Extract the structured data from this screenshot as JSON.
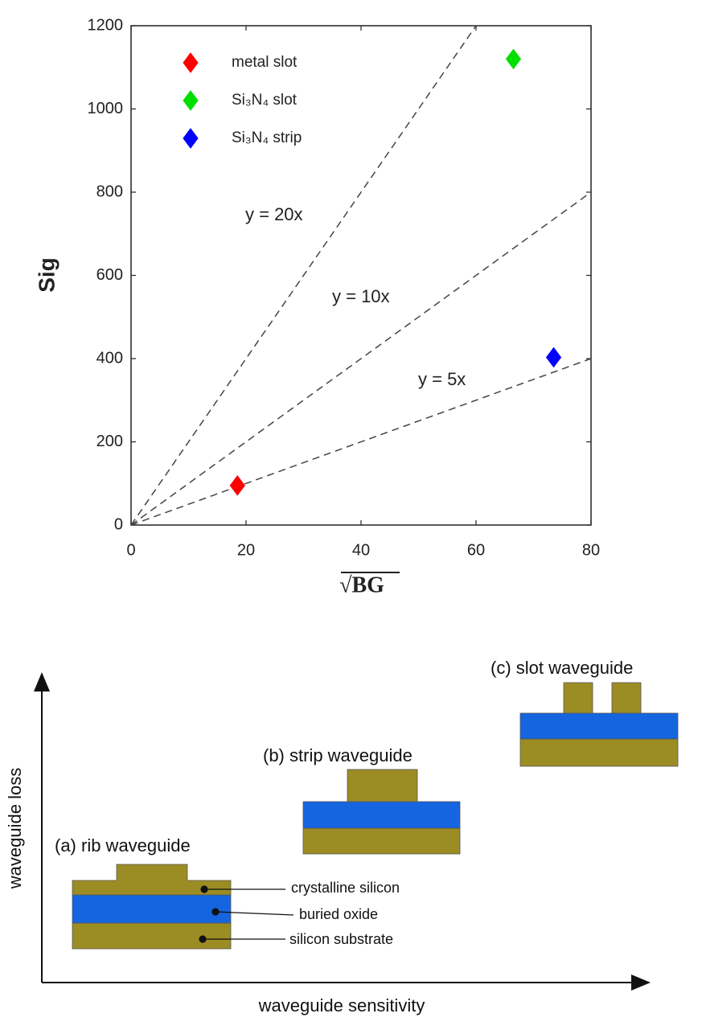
{
  "chart_data": {
    "type": "scatter",
    "ylabel": "Sig",
    "xlabel": "√BG",
    "xlim": [
      0,
      80
    ],
    "ylim": [
      0,
      1200
    ],
    "xticks": [
      0,
      20,
      40,
      60,
      80
    ],
    "yticks": [
      0,
      200,
      400,
      600,
      800,
      1000,
      1200
    ],
    "series": [
      {
        "name": "metal slot",
        "color": "#ff0000",
        "x": [
          18.5
        ],
        "values": [
          95
        ]
      },
      {
        "name": "Si₃N₄ slot",
        "color": "#00e000",
        "x": [
          66.5
        ],
        "values": [
          1120
        ]
      },
      {
        "name": "Si₃N₄ strip",
        "color": "#0000ff",
        "x": [
          73.5
        ],
        "values": [
          403
        ]
      }
    ],
    "reference_lines": [
      {
        "label": "y = 20x",
        "slope": 20
      },
      {
        "label": "y = 10x",
        "slope": 10
      },
      {
        "label": "y = 5x",
        "slope": 5
      }
    ]
  },
  "diagram": {
    "y_axis_label": "waveguide loss",
    "x_axis_label": "waveguide sensitivity",
    "waveguides": [
      "(a) rib waveguide",
      "(b) strip waveguide",
      "(c) slot waveguide"
    ],
    "layers": [
      "crystalline silicon",
      "buried oxide",
      "silicon substrate"
    ]
  }
}
